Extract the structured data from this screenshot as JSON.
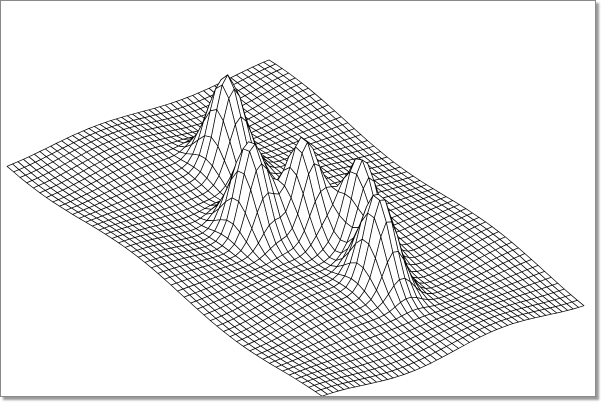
{
  "chart_data": {
    "type": "surface",
    "title": "",
    "xlabel": "",
    "ylabel": "",
    "zlabel": "",
    "render_style": "wireframe",
    "grid": {
      "rows": 48,
      "cols": 48
    },
    "domain": {
      "x": [
        0,
        1
      ],
      "y": [
        0,
        1
      ]
    },
    "baseline": 0,
    "peaks": [
      {
        "x": 0.25,
        "y": 0.46,
        "height": 0.55,
        "width": 0.045
      },
      {
        "x": 0.45,
        "y": 0.61,
        "height": 0.55,
        "width": 0.045
      },
      {
        "x": 0.51,
        "y": 0.48,
        "height": 0.55,
        "width": 0.045
      },
      {
        "x": 0.62,
        "y": 0.39,
        "height": 0.55,
        "width": 0.045
      },
      {
        "x": 0.74,
        "y": 0.47,
        "height": 0.55,
        "width": 0.045
      }
    ],
    "ripple": {
      "amplitude": 0.03,
      "frequency": 10
    },
    "line_color": "#000000",
    "fill_color": "#ffffff"
  }
}
